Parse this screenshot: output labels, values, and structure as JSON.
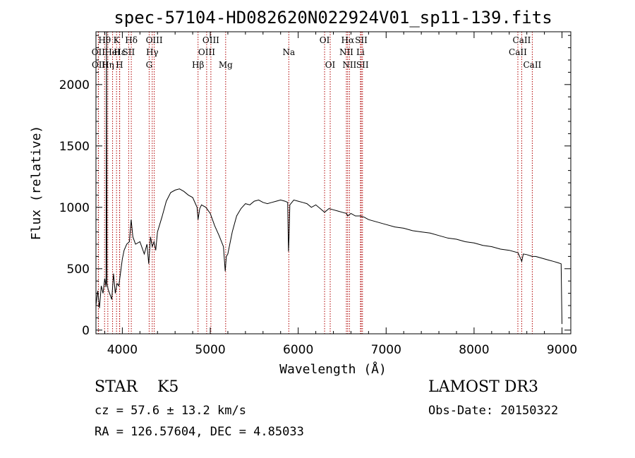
{
  "chart_data": {
    "type": "line",
    "title": "spec-57104-HD082620N022924V01_sp11-139.fits",
    "xlabel": "Wavelength (Å)",
    "ylabel": "Flux (relative)",
    "xlim": [
      3700,
      9100
    ],
    "ylim": [
      -30,
      2430
    ],
    "xticks": [
      4000,
      5000,
      6000,
      7000,
      8000,
      9000
    ],
    "yticks": [
      0,
      500,
      1000,
      1500,
      2000
    ],
    "grid": false,
    "series": [
      {
        "name": "flux",
        "x": [
          3700,
          3720,
          3740,
          3760,
          3780,
          3800,
          3815,
          3820,
          3825,
          3840,
          3860,
          3880,
          3900,
          3920,
          3940,
          3960,
          3980,
          4000,
          4020,
          4050,
          4080,
          4100,
          4120,
          4150,
          4200,
          4250,
          4280,
          4300,
          4320,
          4340,
          4360,
          4380,
          4400,
          4450,
          4500,
          4550,
          4600,
          4650,
          4700,
          4750,
          4800,
          4850,
          4861,
          4880,
          4900,
          4950,
          5000,
          5050,
          5100,
          5150,
          5170,
          5183,
          5200,
          5250,
          5300,
          5350,
          5400,
          5450,
          5500,
          5550,
          5600,
          5650,
          5700,
          5750,
          5800,
          5850,
          5880,
          5890,
          5896,
          5905,
          5950,
          6000,
          6050,
          6100,
          6150,
          6200,
          6250,
          6300,
          6350,
          6400,
          6450,
          6500,
          6550,
          6563,
          6600,
          6650,
          6700,
          6750,
          6800,
          6900,
          7000,
          7100,
          7200,
          7300,
          7400,
          7500,
          7600,
          7700,
          7800,
          7900,
          8000,
          8100,
          8200,
          8300,
          8400,
          8500,
          8542,
          8560,
          8600,
          8662,
          8700,
          8750,
          8800,
          8850,
          8900,
          8950,
          8990,
          9000
        ],
        "values": [
          200,
          320,
          180,
          360,
          300,
          420,
          350,
          2430,
          380,
          330,
          290,
          250,
          460,
          300,
          380,
          360,
          470,
          580,
          650,
          700,
          720,
          900,
          760,
          700,
          720,
          620,
          700,
          540,
          760,
          680,
          720,
          650,
          800,
          920,
          1050,
          1120,
          1140,
          1150,
          1130,
          1100,
          1080,
          1000,
          900,
          990,
          1020,
          1000,
          950,
          850,
          770,
          680,
          480,
          600,
          620,
          800,
          930,
          990,
          1030,
          1020,
          1050,
          1060,
          1040,
          1030,
          1040,
          1050,
          1060,
          1050,
          1040,
          640,
          760,
          1020,
          1060,
          1050,
          1040,
          1030,
          1000,
          1020,
          990,
          960,
          990,
          980,
          970,
          960,
          950,
          930,
          950,
          930,
          930,
          920,
          900,
          880,
          860,
          840,
          830,
          810,
          800,
          790,
          770,
          750,
          740,
          720,
          710,
          690,
          680,
          660,
          650,
          630,
          560,
          620,
          615,
          600,
          600,
          590,
          580,
          570,
          560,
          550,
          540,
          50
        ]
      }
    ],
    "lines": [
      {
        "name": "Hα",
        "x": 6563,
        "row": 1
      },
      {
        "name": "Hβ",
        "x": 4861,
        "row": 3
      },
      {
        "name": "Hγ",
        "x": 4340,
        "row": 2
      },
      {
        "name": "Hδ",
        "x": 4102,
        "row": 1
      },
      {
        "name": "Hε",
        "x": 3970,
        "row": 2
      },
      {
        "name": "Hη",
        "x": 3835,
        "row": 3
      },
      {
        "name": "Hθ",
        "x": 3798,
        "row": 1
      },
      {
        "name": "K",
        "x": 3934,
        "row": 1
      },
      {
        "name": "H",
        "x": 3968,
        "row": 3
      },
      {
        "name": "G",
        "x": 4305,
        "row": 3
      },
      {
        "name": "Mg",
        "x": 5175,
        "row": 3
      },
      {
        "name": "Na",
        "x": 5893,
        "row": 2
      },
      {
        "name": "OII",
        "x": 3727,
        "row": 2
      },
      {
        "name": "OII",
        "x": 3729,
        "row": 3
      },
      {
        "name": "OIII",
        "x": 4363,
        "row": 1
      },
      {
        "name": "OIII",
        "x": 5007,
        "row": 1
      },
      {
        "name": "OIII",
        "x": 4959,
        "row": 2
      },
      {
        "name": "OI",
        "x": 6300,
        "row": 1
      },
      {
        "name": "OI",
        "x": 6364,
        "row": 3
      },
      {
        "name": "HeI",
        "x": 3889,
        "row": 2
      },
      {
        "name": "SII",
        "x": 4072,
        "row": 2
      },
      {
        "name": "SII",
        "x": 6717,
        "row": 1
      },
      {
        "name": "SII",
        "x": 6731,
        "row": 3
      },
      {
        "name": "NII",
        "x": 6548,
        "row": 2
      },
      {
        "name": "NII",
        "x": 6583,
        "row": 3
      },
      {
        "name": "Li",
        "x": 6708,
        "row": 2
      },
      {
        "name": "CaII",
        "x": 8498,
        "row": 2
      },
      {
        "name": "CaII",
        "x": 8542,
        "row": 1
      },
      {
        "name": "CaII",
        "x": 8662,
        "row": 3
      }
    ],
    "colors": {
      "spectrum": "#000000",
      "line_marker": "#b00000"
    }
  },
  "info": {
    "object_type": "STAR",
    "subclass": "K5",
    "survey": "LAMOST DR3",
    "cz": "cz = 57.6 ± 13.2 km/s",
    "obs_date": "Obs-Date: 20150322",
    "radec": "RA = 126.57604, DEC =   4.85033"
  }
}
